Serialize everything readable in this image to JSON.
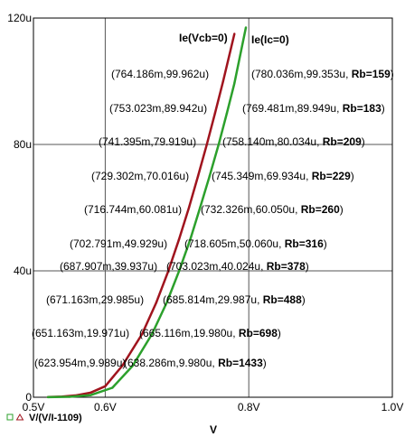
{
  "chart_data": {
    "type": "line",
    "xlabel": "V",
    "xlim": [
      0.5,
      1.0
    ],
    "ylim": [
      0,
      120
    ],
    "x_ticks": [
      {
        "value": 0.5,
        "label": "0.5V"
      },
      {
        "value": 0.6,
        "label": "0.6V"
      },
      {
        "value": 0.8,
        "label": "0.8V"
      },
      {
        "value": 1.0,
        "label": "1.0V"
      }
    ],
    "y_ticks": [
      {
        "value": 0,
        "label": "0"
      },
      {
        "value": 40,
        "label": "40u"
      },
      {
        "value": 80,
        "label": "80u"
      },
      {
        "value": 120,
        "label": "120u"
      }
    ],
    "grid_x": [
      0.6,
      0.8
    ],
    "grid_y": [
      40,
      80
    ],
    "grid": true,
    "legend": {
      "placement": "bottom-left",
      "text": "V/(V/I-1109)"
    },
    "series": [
      {
        "name": "Ie(Vcb=0)",
        "color": "#a0141e",
        "x": [
          0.52,
          0.54,
          0.56,
          0.58,
          0.6,
          0.6239,
          0.6512,
          0.6712,
          0.6879,
          0.7028,
          0.7167,
          0.7293,
          0.7414,
          0.753,
          0.7642,
          0.78
        ],
        "y": [
          0.05,
          0.2,
          0.6,
          1.5,
          3.5,
          9.989,
          19.971,
          29.985,
          39.937,
          49.929,
          60.081,
          70.016,
          79.919,
          89.942,
          99.962,
          115
        ]
      },
      {
        "name": "Ie(Ic=0)",
        "color": "#2ca02c",
        "x": [
          0.52,
          0.55,
          0.58,
          0.61,
          0.6383,
          0.6651,
          0.6858,
          0.703,
          0.7186,
          0.7323,
          0.7453,
          0.7581,
          0.7695,
          0.78,
          0.796
        ],
        "y": [
          0.02,
          0.15,
          0.7,
          3.0,
          9.98,
          19.98,
          29.987,
          40.024,
          50.06,
          60.05,
          69.934,
          80.034,
          89.949,
          99.353,
          117
        ]
      }
    ],
    "annotations_left": [
      "(764.186m,99.962u)",
      "(753.023m,89.942u)",
      "(741.395m,79.919u)",
      "(729.302m,70.016u)",
      "(716.744m,60.081u)",
      "(702.791m,49.929u)",
      "(687.907m,39.937u)",
      "(671.163m,29.985u)",
      "(651.163m,19.971u)",
      "(623.954m,9.989u)"
    ],
    "annotations_right": [
      {
        "text": "(780.036m,99.353u, ",
        "rb": "Rb=159",
        "close": ")"
      },
      {
        "text": "(769.481m,89.949u, ",
        "rb": "Rb=183",
        "close": ")"
      },
      {
        "text": "(758.140m,80.034u, ",
        "rb": "Rb=209",
        "close": ")"
      },
      {
        "text": "(745.349m,69.934u, ",
        "rb": "Rb=229",
        "close": ")"
      },
      {
        "text": "(732.326m,60.050u, ",
        "rb": "Rb=260",
        "close": ")"
      },
      {
        "text": "(718.605m,50.060u, ",
        "rb": "Rb=316",
        "close": ")"
      },
      {
        "text": "(703.023m,40.024u, ",
        "rb": "Rb=378",
        "close": ")"
      },
      {
        "text": "(685.814m,29.987u, ",
        "rb": "Rb=488",
        "close": ")"
      },
      {
        "text": "(665.116m,19.980u, ",
        "rb": "Rb=698",
        "close": ")"
      },
      {
        "text": "(638.286m,9.980u, ",
        "rb": "Rb=1433",
        "close": ")"
      }
    ]
  }
}
